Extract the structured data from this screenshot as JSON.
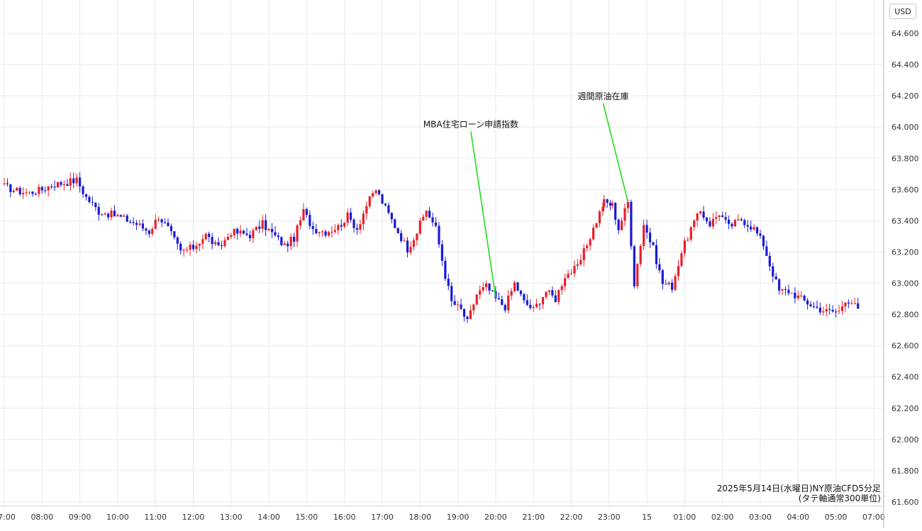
{
  "currency_label": "USD",
  "caption": {
    "line1": "2025年5月14日(水曜日)NY原油CFD5分足",
    "line2": "(タテ軸通常300単位)"
  },
  "colors": {
    "up": "#e8202a",
    "down": "#1a1ad6",
    "grid": "#e4ebf1",
    "annotation_line": "#22dd22",
    "axis_text": "#333333"
  },
  "chart_data": {
    "type": "candlestick",
    "title": "",
    "xlabel": "",
    "ylabel": "",
    "ylim": [
      61.6,
      64.6
    ],
    "yticks": [
      "61.600",
      "61.800",
      "62.000",
      "62.200",
      "62.400",
      "62.600",
      "62.800",
      "63.000",
      "63.200",
      "63.400",
      "63.600",
      "63.800",
      "64.000",
      "64.200",
      "64.400",
      "64.600"
    ],
    "xticks": [
      "07:00",
      "08:00",
      "09:00",
      "10:00",
      "11:00",
      "12:00",
      "13:00",
      "14:00",
      "15:00",
      "16:00",
      "17:00",
      "18:00",
      "19:00",
      "20:00",
      "21:00",
      "22:00",
      "23:00",
      "15",
      "01:00",
      "02:00",
      "03:00",
      "04:00",
      "05:00",
      "07:00"
    ],
    "grid": true,
    "annotations": [
      {
        "text": "MBA住宅ローン申請指数",
        "time": "20:00",
        "price": 62.91
      },
      {
        "text": "週間原油在庫",
        "time": "23:30",
        "price": 63.52
      }
    ],
    "path": [
      [
        "07:00",
        63.62
      ],
      [
        "07:20",
        63.59
      ],
      [
        "07:40",
        63.58
      ],
      [
        "08:00",
        63.6
      ],
      [
        "08:15",
        63.63
      ],
      [
        "08:30",
        63.64
      ],
      [
        "08:55",
        63.66
      ],
      [
        "09:10",
        63.55
      ],
      [
        "09:30",
        63.46
      ],
      [
        "10:00",
        63.43
      ],
      [
        "10:30",
        63.38
      ],
      [
        "10:50",
        63.33
      ],
      [
        "11:05",
        63.43
      ],
      [
        "11:20",
        63.35
      ],
      [
        "11:40",
        63.2
      ],
      [
        "12:00",
        63.23
      ],
      [
        "12:20",
        63.31
      ],
      [
        "12:40",
        63.22
      ],
      [
        "13:00",
        63.33
      ],
      [
        "13:30",
        63.31
      ],
      [
        "13:50",
        63.38
      ],
      [
        "14:10",
        63.3
      ],
      [
        "14:25",
        63.24
      ],
      [
        "14:40",
        63.29
      ],
      [
        "14:55",
        63.46
      ],
      [
        "15:10",
        63.35
      ],
      [
        "15:30",
        63.33
      ],
      [
        "15:50",
        63.36
      ],
      [
        "16:05",
        63.43
      ],
      [
        "16:20",
        63.35
      ],
      [
        "16:35",
        63.5
      ],
      [
        "16:50",
        63.6
      ],
      [
        "17:05",
        63.48
      ],
      [
        "17:25",
        63.33
      ],
      [
        "17:40",
        63.22
      ],
      [
        "17:55",
        63.33
      ],
      [
        "18:10",
        63.47
      ],
      [
        "18:25",
        63.35
      ],
      [
        "18:40",
        63.05
      ],
      [
        "18:50",
        62.88
      ],
      [
        "19:05",
        62.83
      ],
      [
        "19:15",
        62.75
      ],
      [
        "19:30",
        62.93
      ],
      [
        "19:45",
        62.98
      ],
      [
        "20:00",
        62.9
      ],
      [
        "20:15",
        62.85
      ],
      [
        "20:30",
        63.0
      ],
      [
        "20:45",
        62.88
      ],
      [
        "21:00",
        62.83
      ],
      [
        "21:20",
        62.95
      ],
      [
        "21:35",
        62.9
      ],
      [
        "21:50",
        63.05
      ],
      [
        "22:10",
        63.1
      ],
      [
        "22:25",
        63.25
      ],
      [
        "22:40",
        63.4
      ],
      [
        "22:52",
        63.52
      ],
      [
        "23:05",
        63.5
      ],
      [
        "23:15",
        63.35
      ],
      [
        "23:30",
        63.52
      ],
      [
        "23:40",
        63.0
      ],
      [
        "23:55",
        63.38
      ],
      [
        "00:10",
        63.22
      ],
      [
        "00:25",
        63.0
      ],
      [
        "00:40",
        62.98
      ],
      [
        "00:55",
        63.2
      ],
      [
        "01:10",
        63.35
      ],
      [
        "01:25",
        63.46
      ],
      [
        "01:40",
        63.38
      ],
      [
        "01:55",
        63.45
      ],
      [
        "02:10",
        63.36
      ],
      [
        "02:30",
        63.41
      ],
      [
        "02:50",
        63.35
      ],
      [
        "03:05",
        63.25
      ],
      [
        "03:15",
        63.12
      ],
      [
        "03:30",
        62.95
      ],
      [
        "03:45",
        62.95
      ],
      [
        "04:05",
        62.9
      ],
      [
        "04:25",
        62.85
      ],
      [
        "04:45",
        62.82
      ],
      [
        "05:05",
        62.82
      ],
      [
        "05:15",
        62.9
      ],
      [
        "05:25",
        62.88
      ],
      [
        "05:40",
        62.8
      ]
    ]
  }
}
